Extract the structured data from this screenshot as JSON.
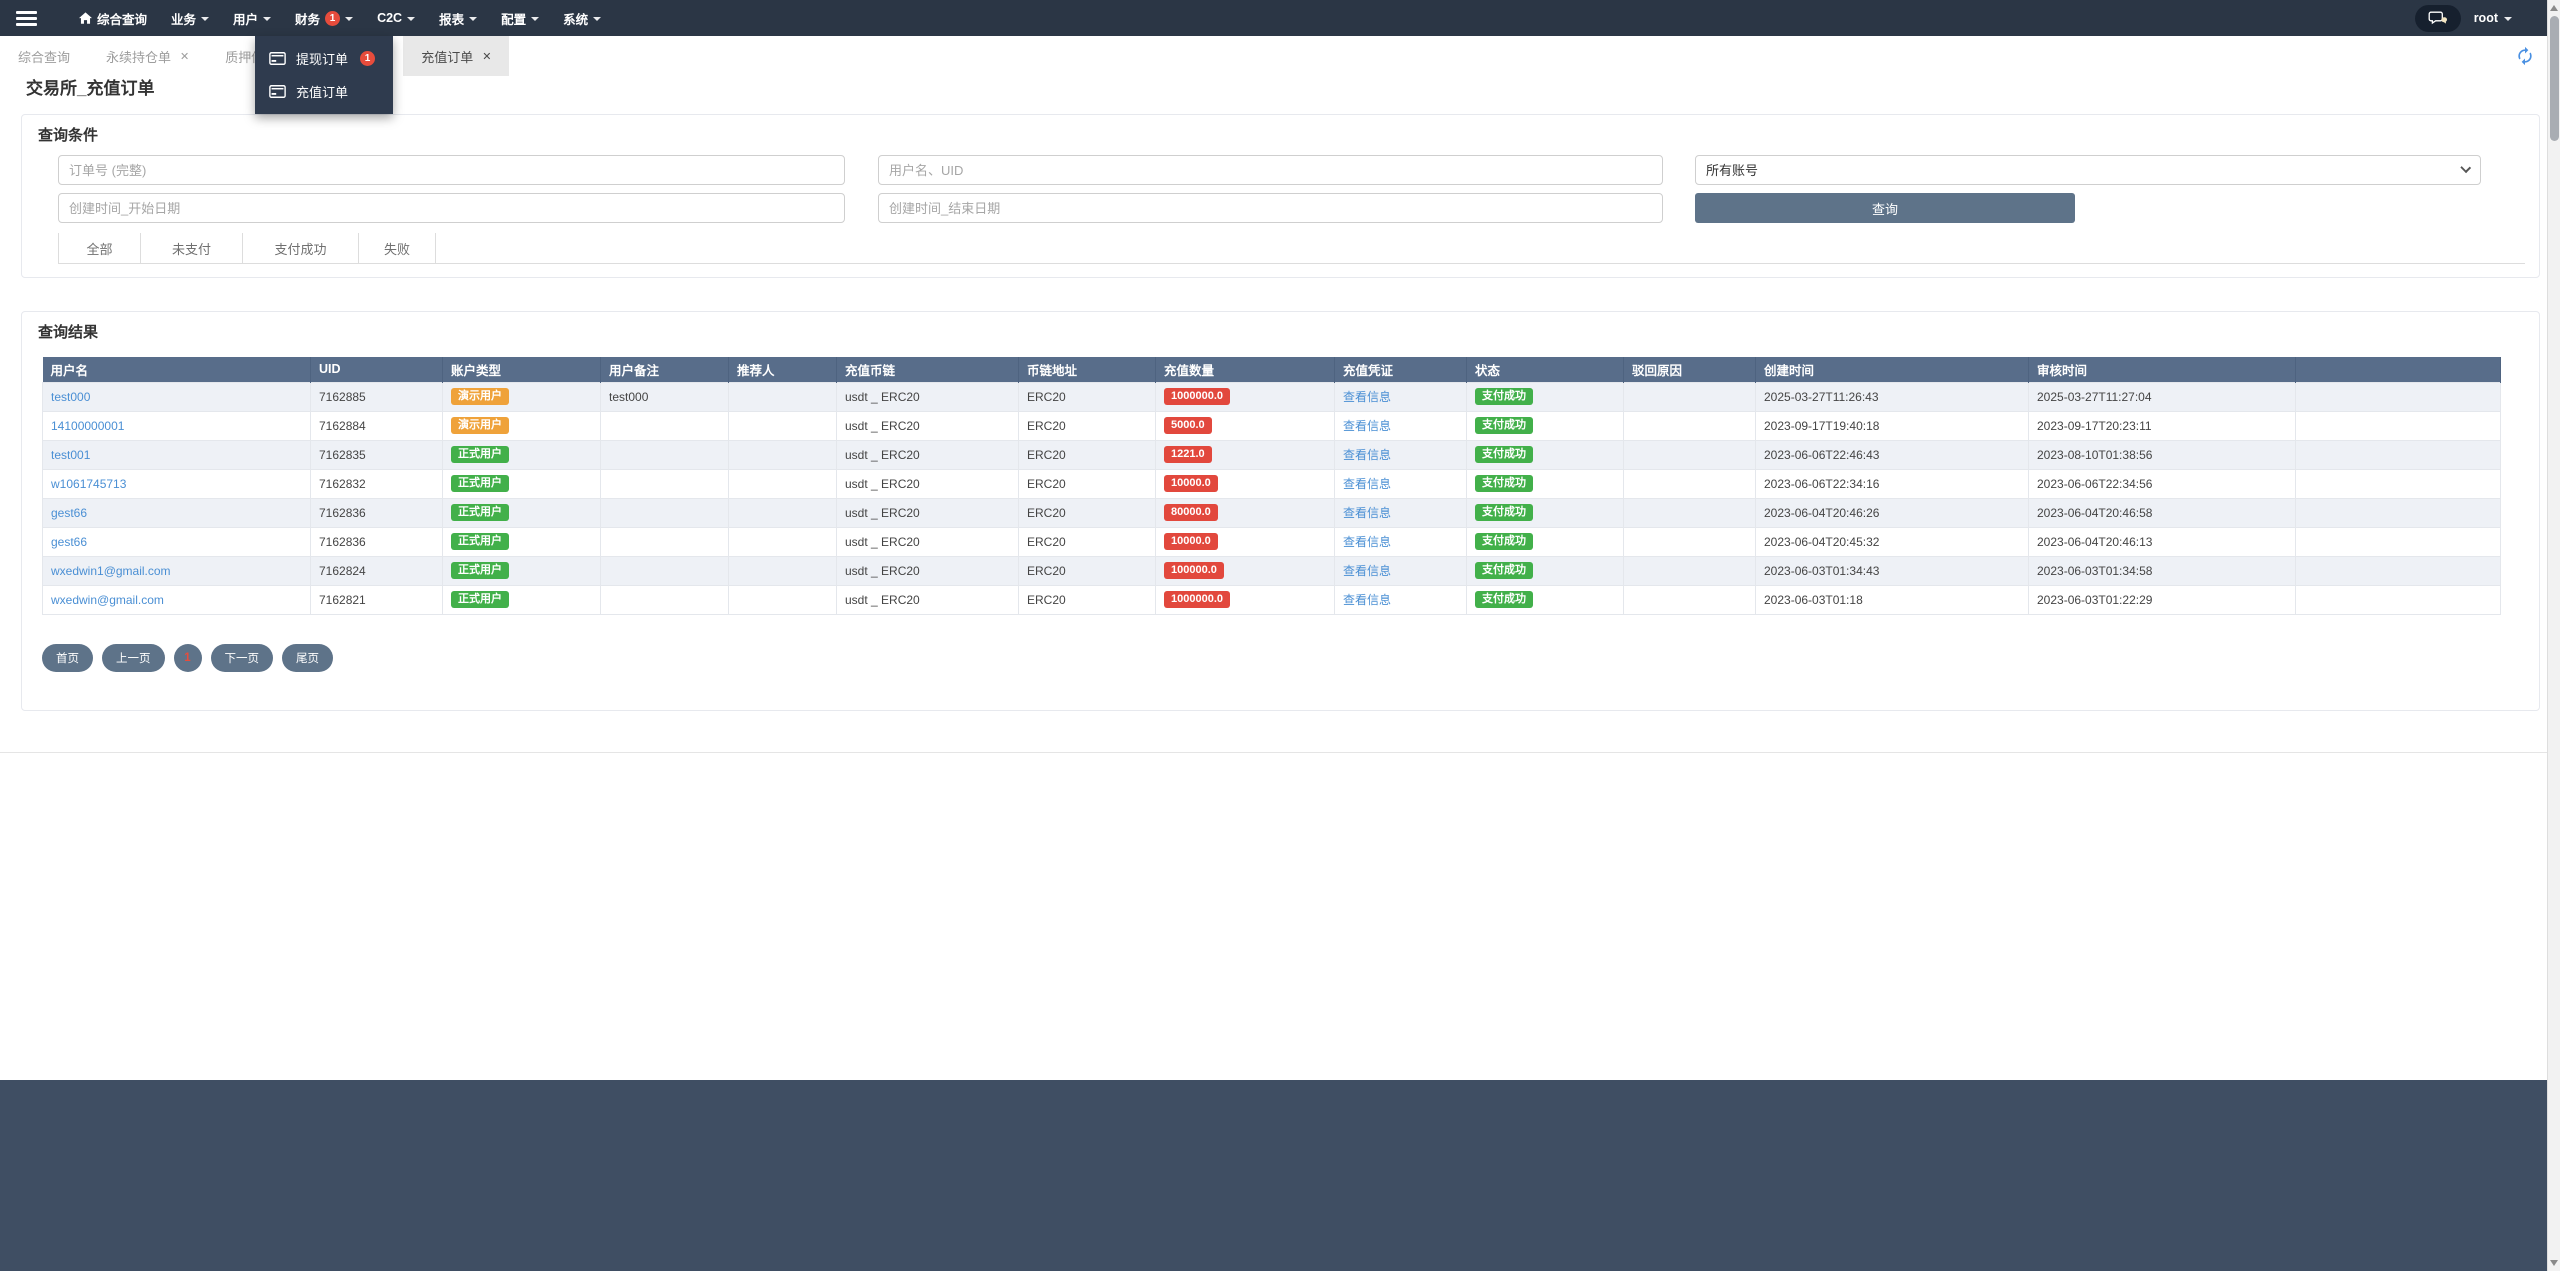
{
  "colors": {
    "navbar_bg": "#2b3645",
    "dropdown_bg": "#2f3b4e",
    "footer_bg": "#3f4e63",
    "table_header_bg": "#586d8a",
    "primary_button_bg": "#5e7389",
    "link_blue": "#4a8fd4",
    "badge_red": "#e2483d",
    "badge_orange": "#efa23a",
    "badge_green": "#42b04a",
    "nav_badge_red": "#e74c3c",
    "active_tab_bg": "#e8e8e8",
    "row_stripe": "#eef1f6"
  },
  "navbar": {
    "items": [
      {
        "id": "dashboard",
        "label": "综合查询",
        "home_icon": true,
        "caret": false
      },
      {
        "id": "business",
        "label": "业务",
        "caret": true
      },
      {
        "id": "users",
        "label": "用户",
        "caret": true
      },
      {
        "id": "finance",
        "label": "财务",
        "badge": "1",
        "caret": true
      },
      {
        "id": "c2c",
        "label": "C2C",
        "caret": true
      },
      {
        "id": "reports",
        "label": "报表",
        "caret": true
      },
      {
        "id": "config",
        "label": "配置",
        "caret": true
      },
      {
        "id": "system",
        "label": "系统",
        "caret": true
      }
    ],
    "user": "root"
  },
  "finance_dropdown": {
    "items": [
      {
        "id": "withdraw-orders",
        "label": "提现订单",
        "badge": "1"
      },
      {
        "id": "recharge-orders",
        "label": "充值订单"
      }
    ]
  },
  "tabbar": {
    "tabs": [
      {
        "id": "dashboard",
        "label": "综合查询",
        "closable": false,
        "active": false,
        "wide": false
      },
      {
        "id": "perpetual",
        "label": "永续持仓单",
        "closable": true,
        "active": false,
        "wide": false
      },
      {
        "id": "pledge",
        "label": "质押借币管理",
        "closable": true,
        "active": false,
        "wide": true
      },
      {
        "id": "recharge",
        "label": "充值订单",
        "closable": true,
        "active": true,
        "wide": false
      }
    ]
  },
  "page": {
    "title": "交易所_充值订单"
  },
  "search": {
    "title": "查询条件",
    "order_input_placeholder": "订单号 (完整)",
    "user_input_placeholder": "用户名、UID",
    "account_select_value": "所有账号",
    "date_start_placeholder": "创建时间_开始日期",
    "date_end_placeholder": "创建时间_结束日期",
    "submit_label": "查询",
    "filters": [
      {
        "id": "all",
        "label": "全部"
      },
      {
        "id": "unpaid",
        "label": "未支付"
      },
      {
        "id": "paid",
        "label": "支付成功"
      },
      {
        "id": "failed",
        "label": "失败"
      }
    ]
  },
  "results": {
    "title": "查询结果",
    "columns": [
      "用户名",
      "UID",
      "账户类型",
      "用户备注",
      "推荐人",
      "充值币链",
      "币链地址",
      "充值数量",
      "充值凭证",
      "状态",
      "驳回原因",
      "创建时间",
      "审核时间",
      ""
    ],
    "voucher_link_label": "查看信息",
    "rows": [
      {
        "username": "test000",
        "uid": "7162885",
        "account_type": "演示用户",
        "account_type_style": "orange",
        "remark": "test000",
        "referrer": "",
        "coin": "usdt _ ERC20",
        "chain": "ERC20",
        "amount": "1000000.0",
        "status": "支付成功",
        "status_style": "green",
        "reject_reason": "",
        "created_at": "2025-03-27T11:26:43",
        "audited_at": "2025-03-27T11:27:04"
      },
      {
        "username": "14100000001",
        "uid": "7162884",
        "account_type": "演示用户",
        "account_type_style": "orange",
        "remark": "",
        "referrer": "",
        "coin": "usdt _ ERC20",
        "chain": "ERC20",
        "amount": "5000.0",
        "status": "支付成功",
        "status_style": "green",
        "reject_reason": "",
        "created_at": "2023-09-17T19:40:18",
        "audited_at": "2023-09-17T20:23:11"
      },
      {
        "username": "test001",
        "uid": "7162835",
        "account_type": "正式用户",
        "account_type_style": "green",
        "remark": "",
        "referrer": "",
        "coin": "usdt _ ERC20",
        "chain": "ERC20",
        "amount": "1221.0",
        "status": "支付成功",
        "status_style": "green",
        "reject_reason": "",
        "created_at": "2023-06-06T22:46:43",
        "audited_at": "2023-08-10T01:38:56"
      },
      {
        "username": "w1061745713",
        "uid": "7162832",
        "account_type": "正式用户",
        "account_type_style": "green",
        "remark": "",
        "referrer": "",
        "coin": "usdt _ ERC20",
        "chain": "ERC20",
        "amount": "10000.0",
        "status": "支付成功",
        "status_style": "green",
        "reject_reason": "",
        "created_at": "2023-06-06T22:34:16",
        "audited_at": "2023-06-06T22:34:56"
      },
      {
        "username": "gest66",
        "uid": "7162836",
        "account_type": "正式用户",
        "account_type_style": "green",
        "remark": "",
        "referrer": "",
        "coin": "usdt _ ERC20",
        "chain": "ERC20",
        "amount": "80000.0",
        "status": "支付成功",
        "status_style": "green",
        "reject_reason": "",
        "created_at": "2023-06-04T20:46:26",
        "audited_at": "2023-06-04T20:46:58"
      },
      {
        "username": "gest66",
        "uid": "7162836",
        "account_type": "正式用户",
        "account_type_style": "green",
        "remark": "",
        "referrer": "",
        "coin": "usdt _ ERC20",
        "chain": "ERC20",
        "amount": "10000.0",
        "status": "支付成功",
        "status_style": "green",
        "reject_reason": "",
        "created_at": "2023-06-04T20:45:32",
        "audited_at": "2023-06-04T20:46:13"
      },
      {
        "username": "wxedwin1@gmail.com",
        "uid": "7162824",
        "account_type": "正式用户",
        "account_type_style": "green",
        "remark": "",
        "referrer": "",
        "coin": "usdt _ ERC20",
        "chain": "ERC20",
        "amount": "100000.0",
        "status": "支付成功",
        "status_style": "green",
        "reject_reason": "",
        "created_at": "2023-06-03T01:34:43",
        "audited_at": "2023-06-03T01:34:58"
      },
      {
        "username": "wxedwin@gmail.com",
        "uid": "7162821",
        "account_type": "正式用户",
        "account_type_style": "green",
        "remark": "",
        "referrer": "",
        "coin": "usdt _ ERC20",
        "chain": "ERC20",
        "amount": "1000000.0",
        "status": "支付成功",
        "status_style": "green",
        "reject_reason": "",
        "created_at": "2023-06-03T01:18",
        "audited_at": "2023-06-03T01:22:29"
      }
    ]
  },
  "pagination": {
    "items": [
      {
        "id": "first",
        "label": "首页",
        "current": false
      },
      {
        "id": "prev",
        "label": "上一页",
        "current": false
      },
      {
        "id": "page-1",
        "label": "1",
        "current": true
      },
      {
        "id": "next",
        "label": "下一页",
        "current": false
      },
      {
        "id": "last",
        "label": "尾页",
        "current": false
      }
    ]
  }
}
